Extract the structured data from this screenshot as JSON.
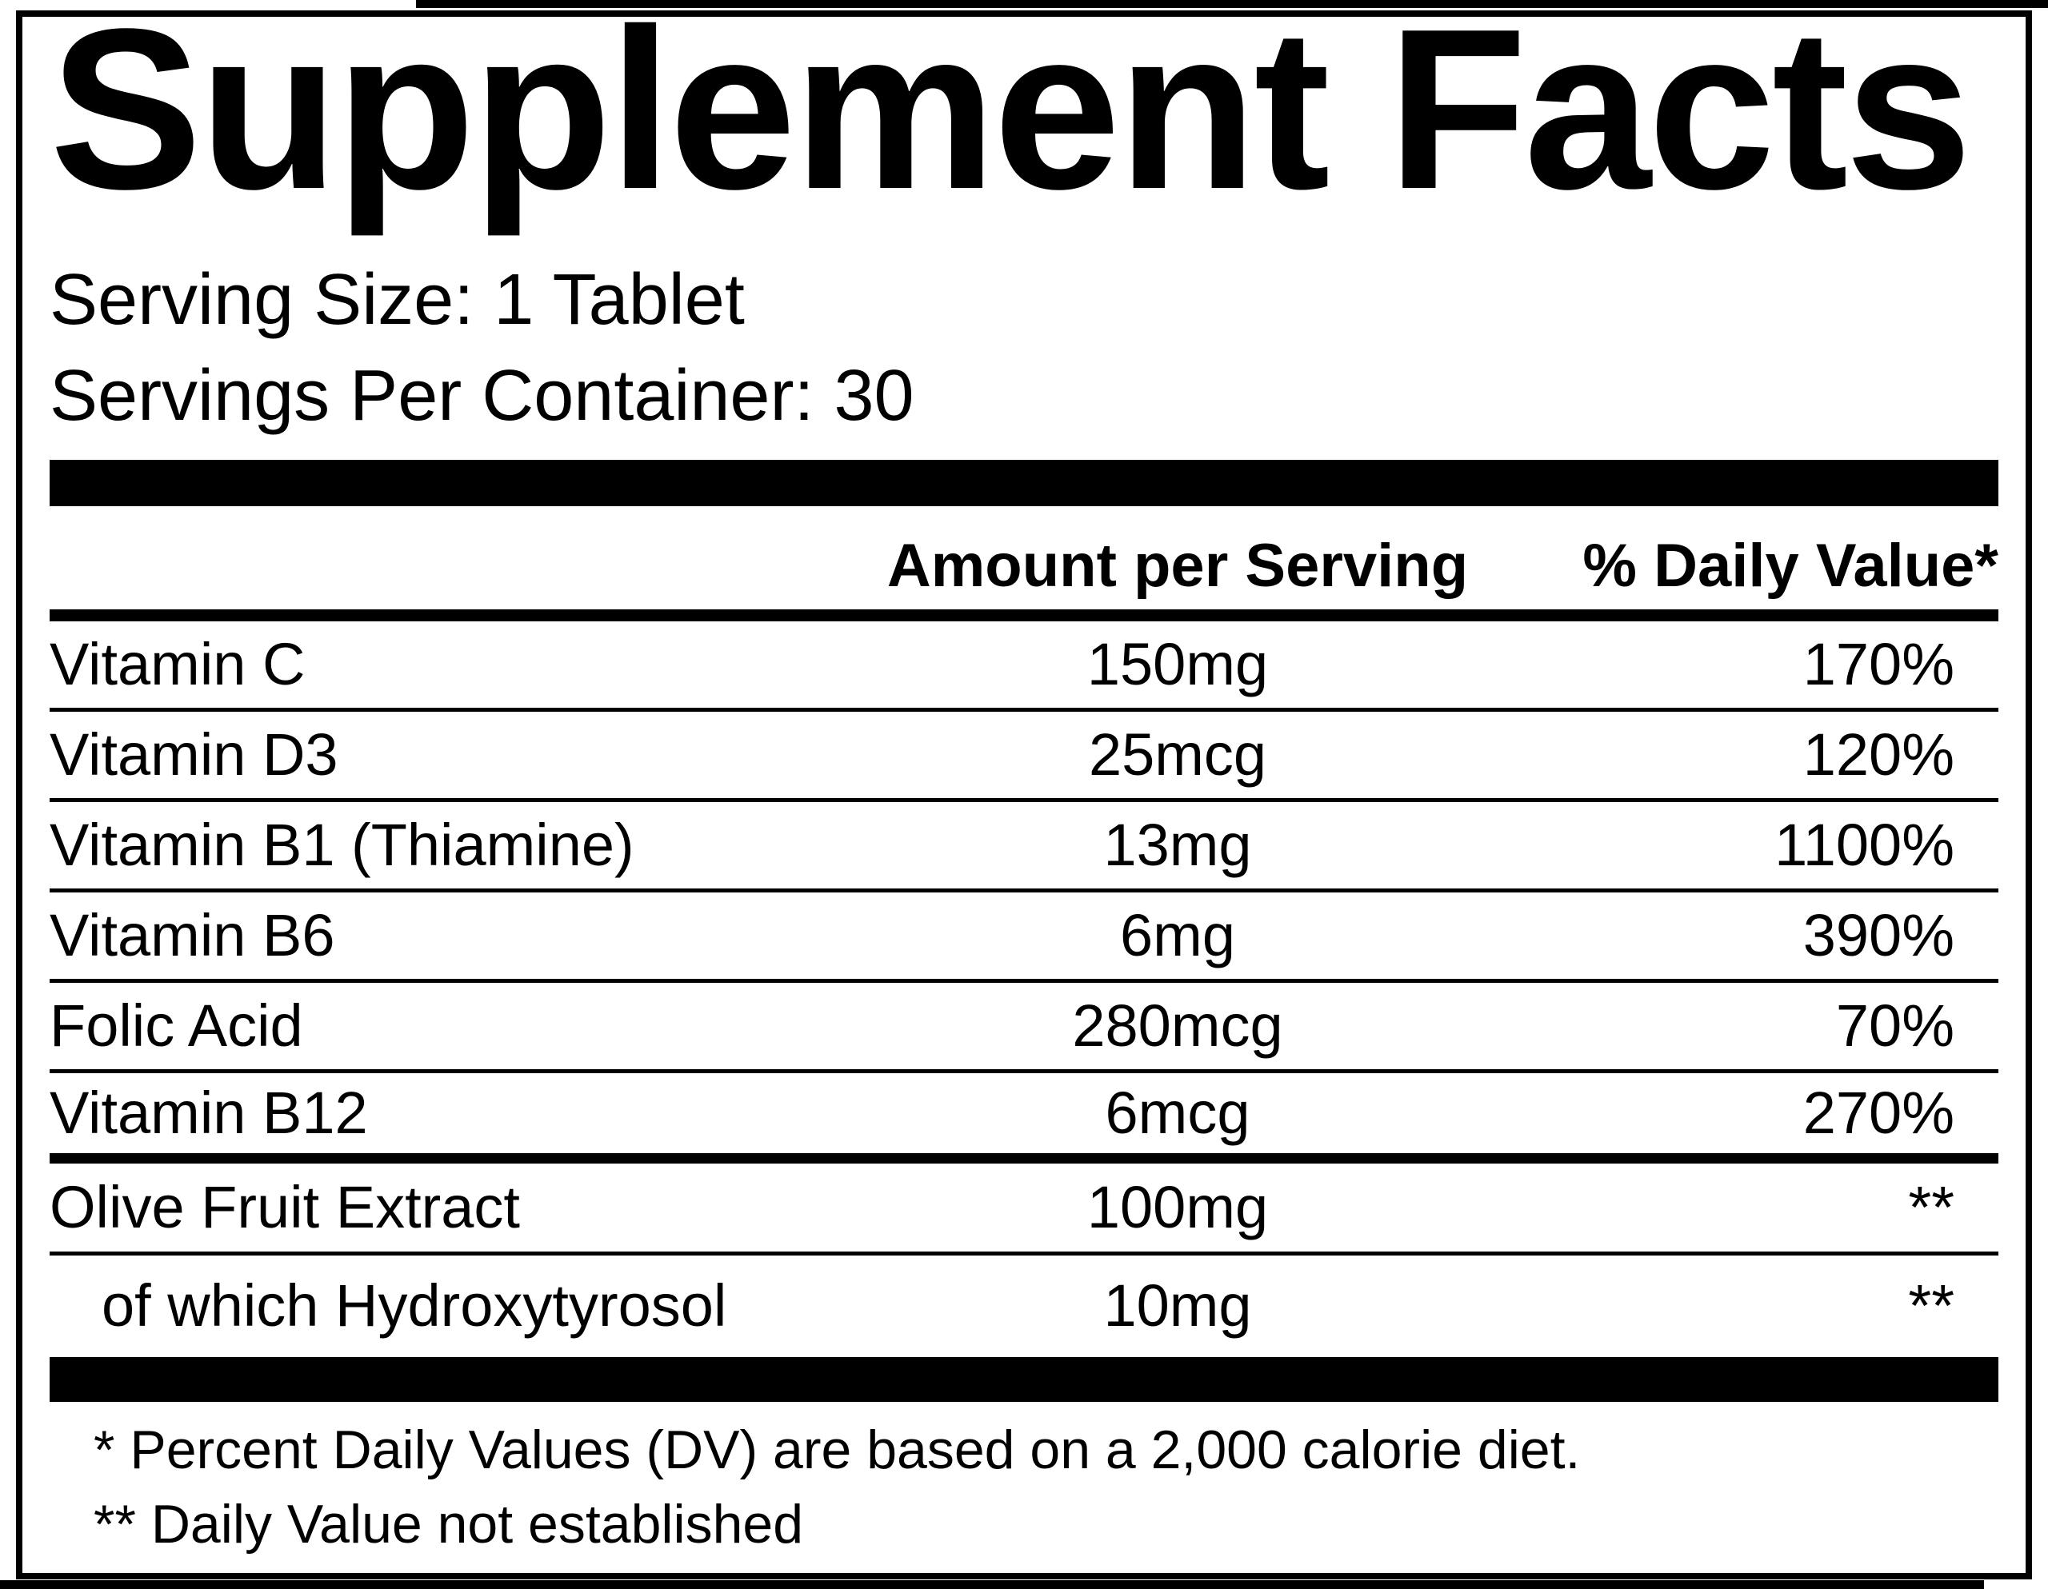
{
  "label": {
    "title": "Supplement Facts",
    "serving_size_line": "Serving Size: 1 Tablet",
    "servings_per_container_line": "Servings Per Container: 30"
  },
  "table": {
    "columns": {
      "amount_header": "Amount per Serving",
      "daily_value_header": "% Daily Value*"
    },
    "rows": [
      {
        "name": "Vitamin C",
        "amount": "150mg",
        "dv": "170%",
        "indent": false
      },
      {
        "name": "Vitamin D3",
        "amount": "25mcg",
        "dv": "120%",
        "indent": false
      },
      {
        "name": "Vitamin B1 (Thiamine)",
        "amount": "13mg",
        "dv": "1100%",
        "indent": false
      },
      {
        "name": "Vitamin B6",
        "amount": "6mg",
        "dv": "390%",
        "indent": false
      },
      {
        "name": "Folic Acid",
        "amount": "280mcg",
        "dv": "70%",
        "indent": false
      },
      {
        "name": "Vitamin B12",
        "amount": "6mcg",
        "dv": "270%",
        "indent": false
      },
      {
        "name": "Olive Fruit Extract",
        "amount": "100mg",
        "dv": "**",
        "indent": false
      },
      {
        "name": "of which Hydroxytyrosol",
        "amount": "10mg",
        "dv": "**",
        "indent": true
      }
    ]
  },
  "footnotes": {
    "percent_dv": "* Percent Daily Values (DV) are based on a 2,000 calorie diet.",
    "not_established": "** Daily Value not established"
  },
  "colors": {
    "text": "#000000",
    "background": "#ffffff",
    "rule": "#000000"
  }
}
